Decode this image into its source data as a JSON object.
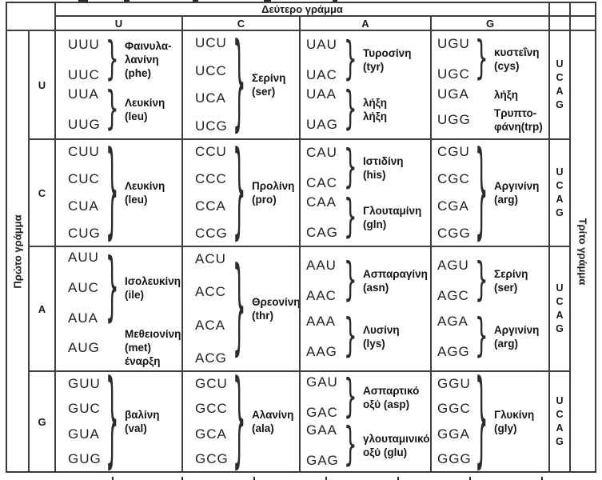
{
  "header": {
    "second_letter": "Δεύτερο γράμμα",
    "columns": [
      "U",
      "C",
      "A",
      "G"
    ]
  },
  "left_axis": {
    "label": "Πρώτο γράμμα"
  },
  "right_axis": {
    "label": "Τρίτο γράμμα",
    "letters": [
      "U",
      "C",
      "A",
      "G"
    ]
  },
  "colors": {
    "border": "#3a3a3a",
    "text": "#1a1a1a",
    "background": "#ffffff"
  },
  "grid": {
    "rows": [
      {
        "first": "U",
        "cells": [
          {
            "groups": [
              {
                "codons": [
                  "UUU",
                  "UUC"
                ],
                "label": [
                  "Φαινυλα-",
                  "λανίνη",
                  "(phe)"
                ]
              },
              {
                "codons": [
                  "UUA",
                  "UUG"
                ],
                "label": [
                  "Λευκίνη",
                  "(leu)"
                ]
              }
            ]
          },
          {
            "groups": [
              {
                "codons": [
                  "UCU",
                  "UCC",
                  "UCA",
                  "UCG"
                ],
                "label": [
                  "Σερίνη",
                  "(ser)"
                ]
              }
            ]
          },
          {
            "groups": [
              {
                "codons": [
                  "UAU",
                  "UAC"
                ],
                "label": [
                  "Τυροσίνη",
                  "(tyr)"
                ]
              },
              {
                "codons": [
                  "UAA",
                  "UAG"
                ],
                "label": [
                  "λήξη",
                  "λήξη"
                ]
              }
            ]
          },
          {
            "groups": [
              {
                "codons": [
                  "UGU",
                  "UGC"
                ],
                "label": [
                  "κυστεΐνη",
                  "(cys)"
                ]
              },
              {
                "codons": [
                  "UGA"
                ],
                "label": [
                  "λήξη"
                ]
              },
              {
                "codons": [
                  "UGG"
                ],
                "label": [
                  "Τρυπτο-",
                  "φάνη(trp)"
                ]
              }
            ]
          }
        ]
      },
      {
        "first": "C",
        "cells": [
          {
            "groups": [
              {
                "codons": [
                  "CUU",
                  "CUC",
                  "CUA",
                  "CUG"
                ],
                "label": [
                  "Λευκίνη",
                  "(leu)"
                ]
              }
            ]
          },
          {
            "groups": [
              {
                "codons": [
                  "CCU",
                  "CCC",
                  "CCA",
                  "CCG"
                ],
                "label": [
                  "Προλίνη",
                  "(pro)"
                ]
              }
            ]
          },
          {
            "groups": [
              {
                "codons": [
                  "CAU",
                  "CAC"
                ],
                "label": [
                  "Ιστιδίνη",
                  "(his)"
                ]
              },
              {
                "codons": [
                  "CAA",
                  "CAG"
                ],
                "label": [
                  "Γλουταμίνη",
                  "(gln)"
                ]
              }
            ]
          },
          {
            "groups": [
              {
                "codons": [
                  "CGU",
                  "CGC",
                  "CGA",
                  "CGG"
                ],
                "label": [
                  "Αργινίνη",
                  "(arg)"
                ]
              }
            ]
          }
        ]
      },
      {
        "first": "A",
        "cells": [
          {
            "groups": [
              {
                "codons": [
                  "AUU",
                  "AUC",
                  "AUA"
                ],
                "label": [
                  "Ισολευκίνη",
                  "(ile)"
                ]
              },
              {
                "codons": [
                  "AUG"
                ],
                "label": [
                  "Μεθειονίνη",
                  "(met)",
                  "έναρξη"
                ]
              }
            ]
          },
          {
            "groups": [
              {
                "codons": [
                  "ACU",
                  "ACC",
                  "ACA",
                  "ACG"
                ],
                "label": [
                  "Θρεονίνη",
                  "(thr)"
                ]
              }
            ]
          },
          {
            "groups": [
              {
                "codons": [
                  "AAU",
                  "AAC"
                ],
                "label": [
                  "Ασπαραγίνη",
                  "(asn)"
                ]
              },
              {
                "codons": [
                  "AAA",
                  "AAG"
                ],
                "label": [
                  "Λυσίνη",
                  "(lys)"
                ]
              }
            ]
          },
          {
            "groups": [
              {
                "codons": [
                  "AGU",
                  "AGC"
                ],
                "label": [
                  "Σερίνη",
                  "(ser)"
                ]
              },
              {
                "codons": [
                  "AGA",
                  "AGG"
                ],
                "label": [
                  "Αργινίνη",
                  "(arg)"
                ]
              }
            ]
          }
        ]
      },
      {
        "first": "G",
        "cells": [
          {
            "groups": [
              {
                "codons": [
                  "GUU",
                  "GUC",
                  "GUA",
                  "GUG"
                ],
                "label": [
                  "βαλίνη",
                  "(val)"
                ]
              }
            ]
          },
          {
            "groups": [
              {
                "codons": [
                  "GCU",
                  "GCC",
                  "GCA",
                  "GCG"
                ],
                "label": [
                  "Αλανίνη",
                  "(ala)"
                ]
              }
            ]
          },
          {
            "groups": [
              {
                "codons": [
                  "GAU",
                  "GAC"
                ],
                "label": [
                  "Ασπαρτικό",
                  "οξύ (asp)"
                ]
              },
              {
                "codons": [
                  "GAA",
                  "GAG"
                ],
                "label": [
                  "γλουταμινικό",
                  "οξύ (glu)"
                ]
              }
            ]
          },
          {
            "groups": [
              {
                "codons": [
                  "GGU",
                  "GGC",
                  "GGA",
                  "GGG"
                ],
                "label": [
                  "Γλυκίνη",
                  "(gly)"
                ]
              }
            ]
          }
        ]
      }
    ]
  }
}
